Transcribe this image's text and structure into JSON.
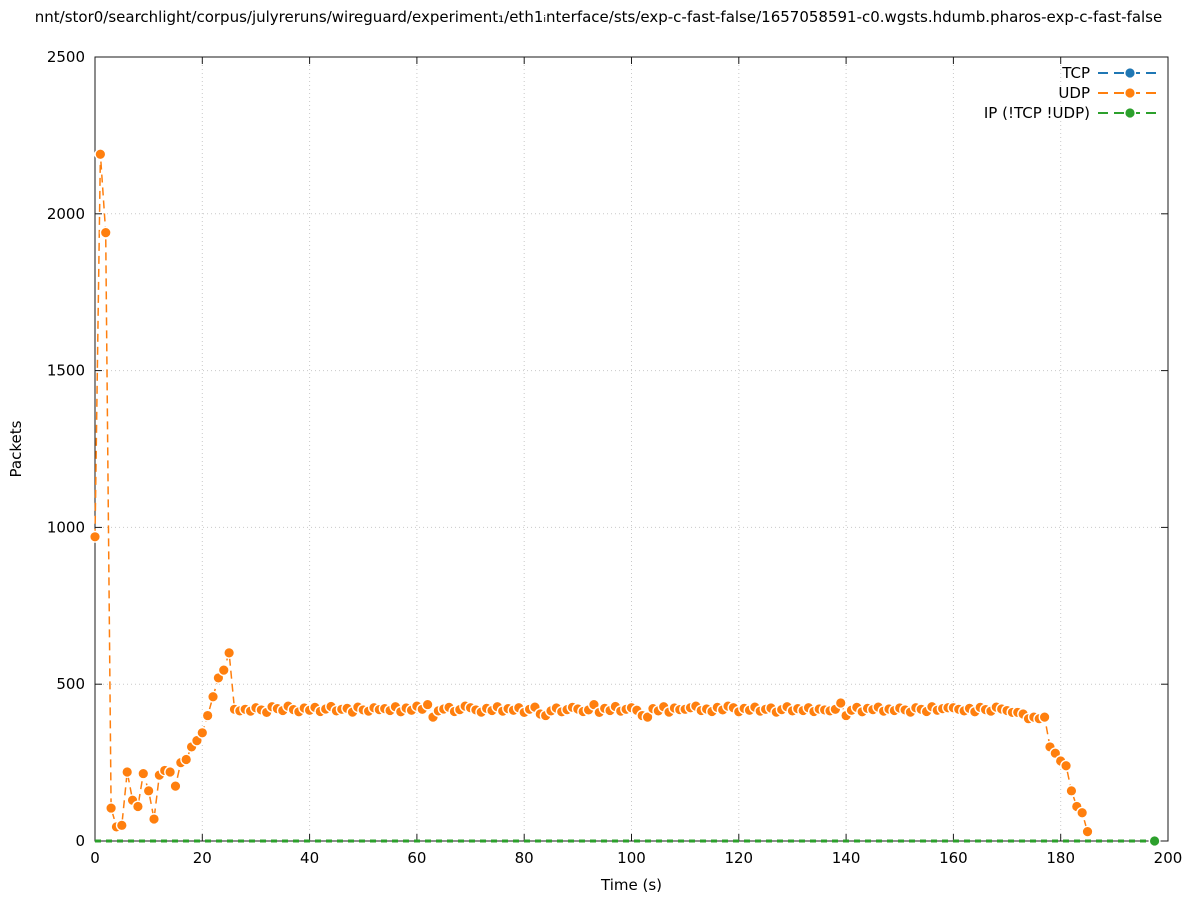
{
  "title": "nnt/stor0/searchlight/corpus/julyreruns/wireguard/experiment₁/eth1ᵢnterface/sts/exp-c-fast-false/1657058591-c0.wgsts.hdumb.pharos-exp-c-fast-false",
  "colors": {
    "tcp": "#1f77b4",
    "udp": "#ff7f0e",
    "ip": "#2ca02c",
    "grid": "#c9c9c9",
    "axis": "#1a1a1a"
  },
  "chart_data": {
    "type": "line",
    "title": "nnt/stor0/searchlight/corpus/julyreruns/wireguard/experiment₁/eth1ᵢnterface/sts/exp-c-fast-false/1657058591-c0.wgsts.hdumb.pharos-exp-c-fast-false",
    "xlabel": "Time (s)",
    "ylabel": "Packets",
    "xlim": [
      0,
      200
    ],
    "ylim": [
      0,
      2500
    ],
    "xticks": [
      0,
      20,
      40,
      60,
      80,
      100,
      120,
      140,
      160,
      180,
      200
    ],
    "yticks": [
      0,
      500,
      1000,
      1500,
      2000,
      2500
    ],
    "grid": true,
    "legend_position": "top-right",
    "series": [
      {
        "name": "TCP",
        "color": "#1f77b4",
        "markers": "all",
        "x": [],
        "values": []
      },
      {
        "name": "UDP",
        "color": "#ff7f0e",
        "markers": "all",
        "x": [
          0,
          1,
          2,
          3,
          4,
          5,
          6,
          7,
          8,
          9,
          10,
          11,
          12,
          13,
          14,
          15,
          16,
          17,
          18,
          19,
          20,
          21,
          22,
          23,
          24,
          25,
          26,
          27,
          28,
          29,
          30,
          31,
          32,
          33,
          34,
          35,
          36,
          37,
          38,
          39,
          40,
          41,
          42,
          43,
          44,
          45,
          46,
          47,
          48,
          49,
          50,
          51,
          52,
          53,
          54,
          55,
          56,
          57,
          58,
          59,
          60,
          61,
          62,
          63,
          64,
          65,
          66,
          67,
          68,
          69,
          70,
          71,
          72,
          73,
          74,
          75,
          76,
          77,
          78,
          79,
          80,
          81,
          82,
          83,
          84,
          85,
          86,
          87,
          88,
          89,
          90,
          91,
          92,
          93,
          94,
          95,
          96,
          97,
          98,
          99,
          100,
          101,
          102,
          103,
          104,
          105,
          106,
          107,
          108,
          109,
          110,
          111,
          112,
          113,
          114,
          115,
          116,
          117,
          118,
          119,
          120,
          121,
          122,
          123,
          124,
          125,
          126,
          127,
          128,
          129,
          130,
          131,
          132,
          133,
          134,
          135,
          136,
          137,
          138,
          139,
          140,
          141,
          142,
          143,
          144,
          145,
          146,
          147,
          148,
          149,
          150,
          151,
          152,
          153,
          154,
          155,
          156,
          157,
          158,
          159,
          160,
          161,
          162,
          163,
          164,
          165,
          166,
          167,
          168,
          169,
          170,
          171,
          172,
          173,
          174,
          175,
          176,
          177,
          178,
          179,
          180,
          181,
          182,
          183,
          184,
          185
        ],
        "values": [
          970,
          2190,
          1940,
          105,
          45,
          50,
          220,
          130,
          110,
          215,
          160,
          70,
          210,
          225,
          220,
          175,
          250,
          260,
          300,
          320,
          345,
          400,
          460,
          520,
          545,
          600,
          420,
          415,
          420,
          414,
          425,
          418,
          410,
          428,
          422,
          416,
          430,
          419,
          412,
          424,
          417,
          426,
          413,
          421,
          429,
          415,
          420,
          423,
          411,
          427,
          418,
          414,
          425,
          419,
          422,
          416,
          428,
          412,
          424,
          417,
          430,
          420,
          435,
          395,
          415,
          421,
          426,
          413,
          419,
          430,
          425,
          418,
          411,
          423,
          416,
          428,
          414,
          422,
          417,
          425,
          410,
          420,
          427,
          405,
          400,
          415,
          424,
          412,
          419,
          426,
          421,
          413,
          418,
          435,
          410,
          423,
          416,
          429,
          414,
          420,
          425,
          417,
          400,
          395,
          422,
          415,
          428,
          411,
          424,
          419,
          420,
          425,
          430,
          416,
          421,
          413,
          426,
          418,
          430,
          425,
          412,
          423,
          417,
          427,
          414,
          420,
          424,
          411,
          419,
          428,
          415,
          422,
          416,
          425,
          413,
          421,
          418,
          415,
          420,
          440,
          400,
          417,
          426,
          412,
          423,
          419,
          427,
          414,
          421,
          416,
          424,
          418,
          411,
          425,
          420,
          413,
          428,
          417,
          422,
          425,
          425,
          420,
          415,
          423,
          412,
          426,
          419,
          414,
          427,
          421,
          416,
          410,
          410,
          405,
          390,
          395,
          390,
          395,
          300,
          280,
          255,
          240,
          160,
          110,
          90,
          30
        ]
      },
      {
        "name": "IP (!TCP !UDP)",
        "color": "#2ca02c",
        "markers": "last",
        "x": [
          0,
          2,
          4,
          6,
          8,
          10,
          12,
          14,
          16,
          18,
          20,
          22,
          24,
          26,
          28,
          30,
          32,
          34,
          36,
          38,
          40,
          42,
          44,
          46,
          48,
          50,
          52,
          54,
          56,
          58,
          60,
          62,
          64,
          66,
          68,
          70,
          72,
          74,
          76,
          78,
          80,
          82,
          84,
          86,
          88,
          90,
          92,
          94,
          96,
          98,
          100,
          102,
          104,
          106,
          108,
          110,
          112,
          114,
          116,
          118,
          120,
          122,
          124,
          126,
          128,
          130,
          132,
          134,
          136,
          138,
          140,
          142,
          144,
          146,
          148,
          150,
          152,
          154,
          156,
          158,
          160,
          162,
          164,
          166,
          168,
          170,
          172,
          174,
          176,
          178,
          180,
          182,
          184,
          186,
          188,
          190,
          192,
          194,
          196,
          197.5
        ],
        "values": [
          0,
          0,
          0,
          0,
          0,
          0,
          0,
          0,
          0,
          0,
          0,
          0,
          0,
          0,
          0,
          0,
          0,
          0,
          0,
          0,
          0,
          0,
          0,
          0,
          0,
          0,
          0,
          0,
          0,
          0,
          0,
          0,
          0,
          0,
          0,
          0,
          0,
          0,
          0,
          0,
          0,
          0,
          0,
          0,
          0,
          0,
          0,
          0,
          0,
          0,
          0,
          0,
          0,
          0,
          0,
          0,
          0,
          0,
          0,
          0,
          0,
          0,
          0,
          0,
          0,
          0,
          0,
          0,
          0,
          0,
          0,
          0,
          0,
          0,
          0,
          0,
          0,
          0,
          0,
          0,
          0,
          0,
          0,
          0,
          0,
          0,
          0,
          0,
          0,
          0,
          0,
          0,
          0,
          0,
          0,
          0,
          0,
          0,
          0,
          0
        ]
      }
    ]
  }
}
